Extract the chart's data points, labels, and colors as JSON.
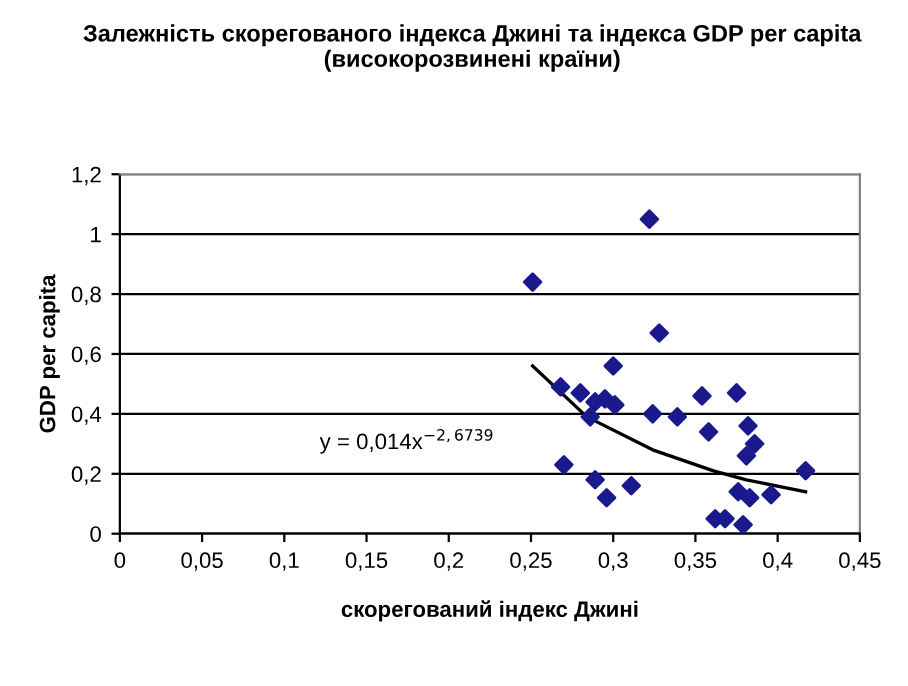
{
  "chart_data": {
    "type": "scatter",
    "title": "Залежність скорегованого індекса Джині та індекса GDP per capita\n(високорозвинені країни)",
    "xlabel": "скорегований індекс Джині",
    "ylabel": "GDP per capita",
    "xlim": [
      0,
      0.45
    ],
    "ylim": [
      0,
      1.2
    ],
    "xticks": [
      0,
      {
        "value": 0.05,
        "label": "0,05"
      },
      {
        "value": 0.1,
        "label": "0,1"
      },
      {
        "value": 0.15,
        "label": "0,15"
      },
      {
        "value": 0.2,
        "label": "0,2"
      },
      {
        "value": 0.25,
        "label": "0,25"
      },
      {
        "value": 0.3,
        "label": "0,3"
      },
      {
        "value": 0.35,
        "label": "0,35"
      },
      {
        "value": 0.4,
        "label": "0,4"
      },
      {
        "value": 0.45,
        "label": "0,45"
      }
    ],
    "yticks": [
      0,
      {
        "value": 0.2,
        "label": "0,2"
      },
      {
        "value": 0.4,
        "label": "0,4"
      },
      {
        "value": 0.6,
        "label": "0,6"
      },
      {
        "value": 0.8,
        "label": "0,8"
      },
      1,
      {
        "value": 1.2,
        "label": "1,2"
      }
    ],
    "grid": "y",
    "marker": "diamond",
    "annotations": [
      "y = 0,014x$^{−2,6739}$"
    ],
    "series": [
      {
        "color": "#1a1a8c",
        "x": [
          0.251,
          0.322,
          0.328,
          0.268,
          0.28,
          0.286,
          0.289,
          0.295,
          0.301,
          0.3,
          0.27,
          0.289,
          0.296,
          0.311,
          0.324,
          0.339,
          0.354,
          0.358,
          0.375,
          0.382,
          0.386,
          0.381,
          0.376,
          0.383,
          0.396,
          0.417,
          0.362,
          0.368,
          0.379
        ],
        "values": [
          0.84,
          1.05,
          0.67,
          0.49,
          0.47,
          0.39,
          0.44,
          0.45,
          0.43,
          0.56,
          0.23,
          0.18,
          0.12,
          0.16,
          0.4,
          0.39,
          0.46,
          0.34,
          0.47,
          0.36,
          0.3,
          0.26,
          0.14,
          0.12,
          0.13,
          0.21,
          0.05,
          0.05,
          0.03
        ]
      },
      {
        "type": "line",
        "color": "#000000",
        "marker": "none",
        "x": [
          0.251,
          0.284,
          0.324,
          0.361,
          0.381,
          0.417
        ],
        "values": [
          0.56,
          0.39,
          0.28,
          0.21,
          0.18,
          0.14
        ]
      }
    ]
  }
}
